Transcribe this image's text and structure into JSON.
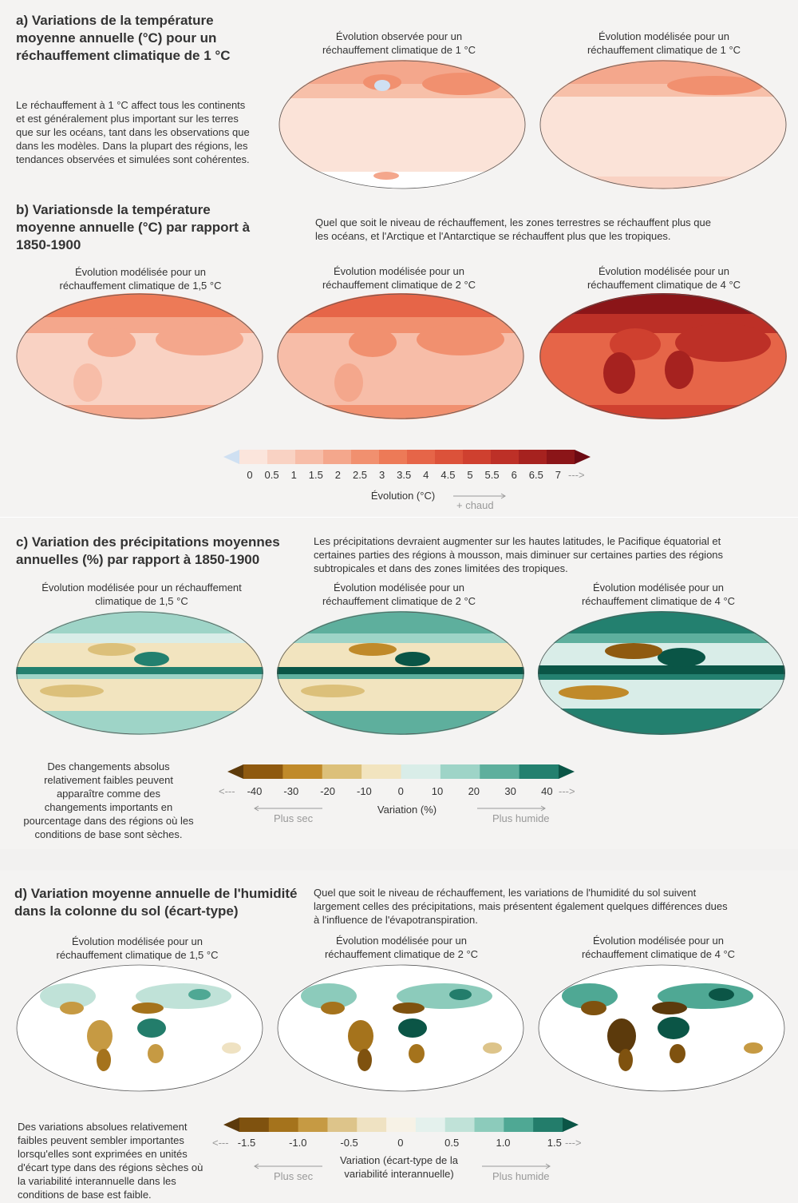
{
  "colors": {
    "warm": [
      "#cfe0f2",
      "#fbe5dc",
      "#f9d2c3",
      "#f7bda8",
      "#f4a78c",
      "#f1906f",
      "#ed7a57",
      "#e66548",
      "#dc523a",
      "#cf402f",
      "#bd3027",
      "#a6221f",
      "#8b1518",
      "#6d0a13"
    ],
    "prec": [
      "#5e3b0b",
      "#8f5a10",
      "#c08a2a",
      "#dcc07a",
      "#f2e4bf",
      "#d9ede8",
      "#9ed4c7",
      "#5eaf9d",
      "#23806f",
      "#0a5546"
    ],
    "soil": [
      "#5c3a0c",
      "#7f520f",
      "#a5731c",
      "#c69a43",
      "#ddc48a",
      "#efe2c2",
      "#f7f2e6",
      "#e4f1ed",
      "#c0e2d8",
      "#8ccbbb",
      "#4fa894",
      "#237d6b",
      "#0b5546"
    ]
  },
  "panel_a": {
    "title_lines": [
      "a) Variations de la température",
      "moyenne annuelle (°C) pour un",
      "réchauffement climatique de 1 °C"
    ],
    "text_lines": [
      "Le réchauffement à 1 °C affect tous les continents",
      "et est généralement plus important sur les terres",
      "que sur les océans, tant dans les observations que",
      "dans les modèles. Dans la plupart des régions, les",
      "tendances observées et simulées sont cohérentes."
    ],
    "maps": [
      {
        "caption": [
          "Évolution observée pour un",
          "réchauffement climatique de 1 °C"
        ],
        "icon": "world-map-icon"
      },
      {
        "caption": [
          "Évolution modélisée pour un",
          "réchauffement climatique de 1 °C"
        ],
        "icon": "world-map-icon"
      }
    ]
  },
  "panel_b": {
    "title_lines": [
      "b) Variationsde la température",
      "moyenne annuelle (°C) par rapport à",
      "1850-1900"
    ],
    "text_lines": [
      "Quel que soit le niveau de réchauffement, les zones terrestres se réchauffent plus que",
      "les océans, et l'Arctique et l'Antarctique se réchauffent plus que les tropiques."
    ],
    "maps": [
      {
        "caption": [
          "Évolution modélisée pour un",
          "réchauffement climatique de 1,5 °C"
        ],
        "icon": "world-map-icon"
      },
      {
        "caption": [
          "Évolution modélisée pour un",
          "réchauffement climatique de 2 °C"
        ],
        "icon": "world-map-icon"
      },
      {
        "caption": [
          "Évolution modélisée pour un",
          "réchauffement climatique de 4 °C"
        ],
        "icon": "world-map-icon"
      }
    ],
    "legend": {
      "ticks": [
        "0",
        "0.5",
        "1",
        "1.5",
        "2",
        "2.5",
        "3",
        "3.5",
        "4",
        "4.5",
        "5",
        "5.5",
        "6",
        "6.5",
        "7"
      ],
      "label": "Évolution (°C)",
      "warm_label": "+ chaud"
    }
  },
  "panel_c": {
    "title_lines": [
      "c) Variation des précipitations moyennes",
      "annuelles (%) par rapport à 1850-1900"
    ],
    "text_lines": [
      "Les précipitations devraient augmenter sur les hautes latitudes, le Pacifique équatorial et",
      "certaines parties des régions à mousson, mais diminuer sur certaines parties des régions",
      "subtropicales et dans des zones limitées des tropiques."
    ],
    "maps": [
      {
        "caption": [
          "Évolution modélisée pour un réchauffement",
          "climatique de 1,5 °C"
        ],
        "icon": "world-map-icon"
      },
      {
        "caption": [
          "Évolution modélisée pour un",
          "réchauffement climatique de 2 °C"
        ],
        "icon": "world-map-icon"
      },
      {
        "caption": [
          "Évolution modélisée pour un",
          "réchauffement climatique de 4 °C"
        ],
        "icon": "world-map-icon"
      }
    ],
    "note_lines": [
      "Des changements absolus",
      "relativement faibles peuvent",
      "apparaître comme des",
      "changements importants en",
      "pourcentage dans des régions où les",
      "conditions de base sont sèches."
    ],
    "legend": {
      "ticks": [
        "-40",
        "-30",
        "-20",
        "-10",
        "0",
        "10",
        "20",
        "30",
        "40"
      ],
      "label": "Variation (%)",
      "dry_label": "Plus sec",
      "wet_label": "Plus humide"
    }
  },
  "panel_d": {
    "title_lines": [
      "d) Variation moyenne annuelle de l'humidité",
      "dans la colonne du sol (écart-type)"
    ],
    "text_lines": [
      "Quel que soit le niveau de réchauffement, les variations de l'humidité du sol suivent",
      "largement celles des précipitations, mais présentent également quelques différences dues",
      "à l'influence de l'évapotranspiration."
    ],
    "maps": [
      {
        "caption": [
          "Évolution modélisée pour un",
          "réchauffement climatique de 1,5 °C"
        ],
        "icon": "world-map-icon"
      },
      {
        "caption": [
          "Évolution modélisée pour un",
          "réchauffement climatique de 2 °C"
        ],
        "icon": "world-map-icon"
      },
      {
        "caption": [
          "Évolution modélisée pour un",
          "réchauffement climatique de 4 °C"
        ],
        "icon": "world-map-icon"
      }
    ],
    "note_lines": [
      "Des variations absolues relativement",
      "faibles peuvent sembler importantes",
      "lorsqu'elles sont exprimées en unités",
      "d'écart type dans des régions sèches où",
      "la variabilité interannuelle dans les",
      "conditions de base est faible."
    ],
    "legend": {
      "ticks": [
        "-1.5",
        "-1.0",
        "-0.5",
        "0",
        "0.5",
        "1.0",
        "1.5"
      ],
      "label_lines": [
        "Variation (écart-type de la",
        "variabilité interannuelle)"
      ],
      "dry_label": "Plus sec",
      "wet_label": "Plus humide"
    }
  }
}
